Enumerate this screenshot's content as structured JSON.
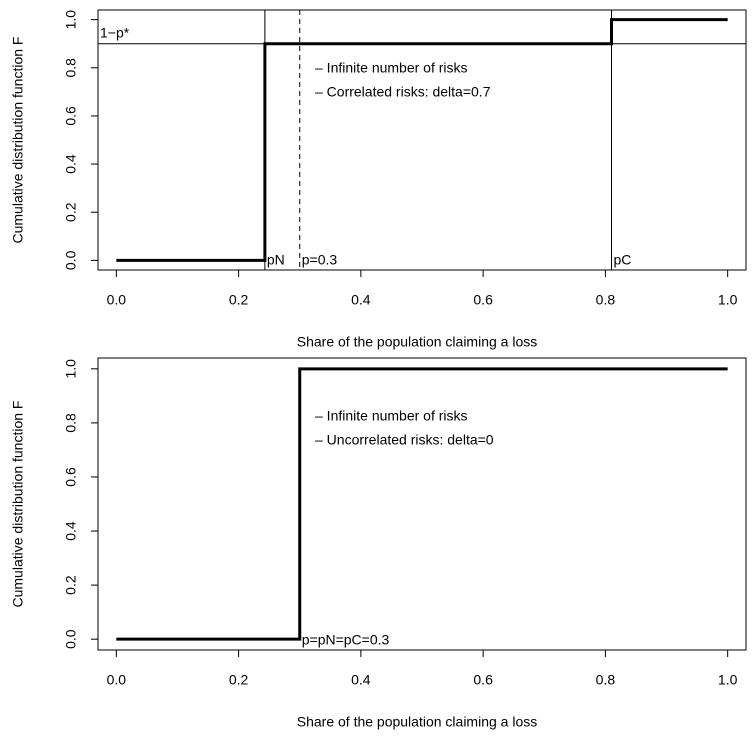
{
  "chart_data": [
    {
      "type": "step",
      "xlabel": "Share of the population claiming a loss",
      "ylabel": "Cumulative distribution function F",
      "xlim": [
        -0.03,
        1.03
      ],
      "ylim": [
        -0.04,
        1.04
      ],
      "xticks": [
        {
          "value": 0,
          "label": "0.0"
        },
        0.2,
        0.4,
        0.6,
        0.8,
        {
          "value": 1,
          "label": "1.0"
        }
      ],
      "yticks": [
        {
          "value": 0,
          "label": "0.0"
        },
        0.2,
        0.4,
        0.6,
        0.8,
        {
          "value": 1,
          "label": "1.0"
        }
      ],
      "series": [
        {
          "x": [
            0,
            0.243,
            0.243,
            0.81,
            0.81,
            1
          ],
          "values": [
            0,
            0,
            0.9,
            0.9,
            1,
            1
          ],
          "color": "#000000"
        }
      ],
      "vlines": [
        {
          "x": 0.243,
          "label": "pN",
          "style": "solid"
        },
        {
          "x": 0.3,
          "label": "p=0.3",
          "style": "dashed"
        },
        {
          "x": 0.81,
          "label": "pC",
          "style": "solid"
        }
      ],
      "hlines": [
        {
          "y": 0.9,
          "label": "1−p*"
        }
      ],
      "annotations": [
        "– Infinite number of risks",
        "– Correlated risks: delta=0.7"
      ]
    },
    {
      "type": "step",
      "xlabel": "Share of the population claiming a loss",
      "ylabel": "Cumulative distribution function F",
      "xlim": [
        -0.03,
        1.03
      ],
      "ylim": [
        -0.04,
        1.04
      ],
      "xticks": [
        {
          "value": 0,
          "label": "0.0"
        },
        0.2,
        0.4,
        0.6,
        0.8,
        {
          "value": 1,
          "label": "1.0"
        }
      ],
      "yticks": [
        {
          "value": 0,
          "label": "0.0"
        },
        0.2,
        0.4,
        0.6,
        0.8,
        {
          "value": 1,
          "label": "1.0"
        }
      ],
      "series": [
        {
          "x": [
            0,
            0.3,
            0.3,
            1
          ],
          "values": [
            0,
            0,
            1,
            1
          ],
          "color": "#000000"
        }
      ],
      "vlines": [
        {
          "x": 0.3,
          "label": "p=pN=pC=0.3",
          "style": "none"
        }
      ],
      "hlines": [],
      "annotations": [
        "– Infinite number of risks",
        "– Uncorrelated risks: delta=0"
      ]
    }
  ]
}
